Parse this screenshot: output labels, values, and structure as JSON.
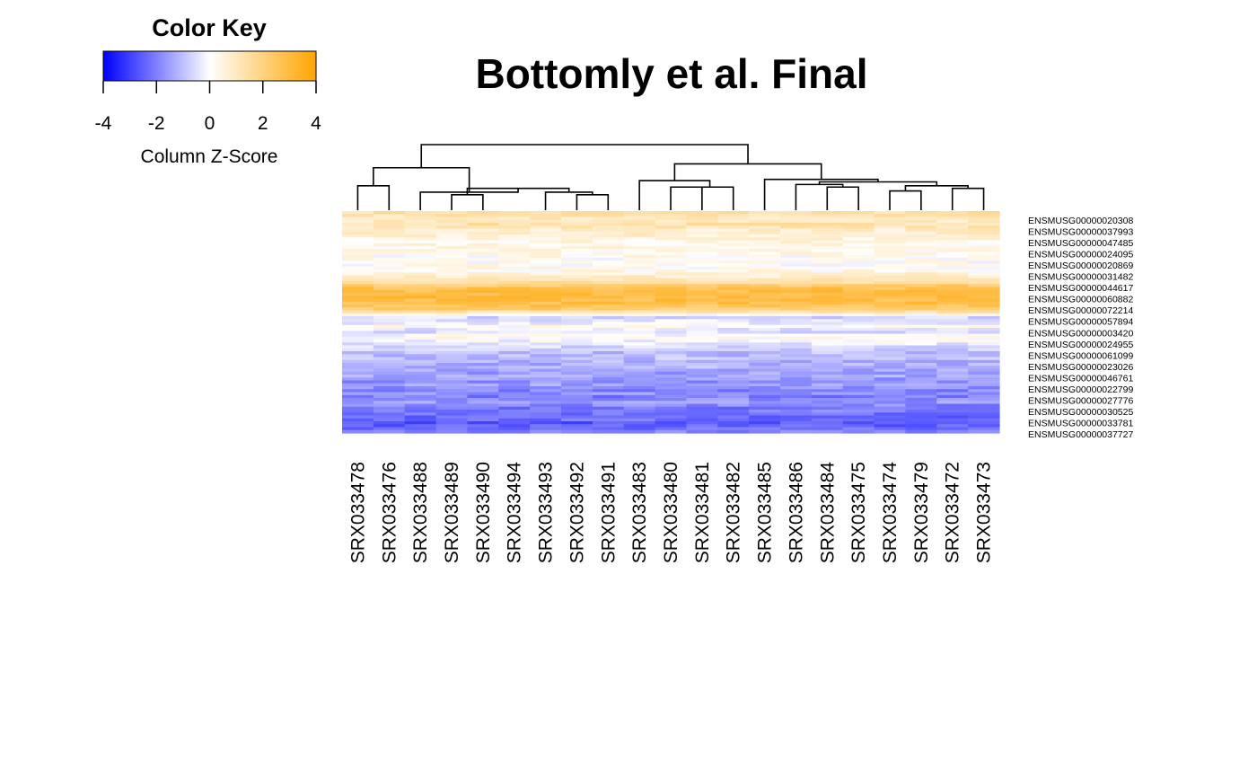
{
  "chart_data": {
    "type": "heatmap",
    "title": "Bottomly et al. Final",
    "color_key": {
      "title": "Color Key",
      "label": "Column Z-Score",
      "range": [
        -4,
        4
      ],
      "ticks": [
        "-4",
        "-2",
        "0",
        "2",
        "4"
      ],
      "low_color": "#0000ff",
      "mid_color": "#ffffff",
      "high_color": "#ffa500"
    },
    "columns": [
      "SRX033478",
      "SRX033476",
      "SRX033488",
      "SRX033489",
      "SRX033490",
      "SRX033494",
      "SRX033493",
      "SRX033492",
      "SRX033491",
      "SRX033483",
      "SRX033480",
      "SRX033481",
      "SRX033482",
      "SRX033485",
      "SRX033486",
      "SRX033484",
      "SRX033475",
      "SRX033474",
      "SRX033479",
      "SRX033472",
      "SRX033473"
    ],
    "row_labels": [
      "ENSMUSG00000020308",
      "ENSMUSG00000037993",
      "ENSMUSG00000047485",
      "ENSMUSG00000024095",
      "ENSMUSG00000020869",
      "ENSMUSG00000031482",
      "ENSMUSG00000044617",
      "ENSMUSG00000060882",
      "ENSMUSG00000072214",
      "ENSMUSG00000057894",
      "ENSMUSG00000003420",
      "ENSMUSG00000024955",
      "ENSMUSG00000061099",
      "ENSMUSG00000023026",
      "ENSMUSG00000046761",
      "ENSMUSG00000022799",
      "ENSMUSG00000027776",
      "ENSMUSG00000030525",
      "ENSMUSG00000033781",
      "ENSMUSG00000037727"
    ],
    "row_profile": [
      1.4,
      1.2,
      1.0,
      0.9,
      1.3,
      1.1,
      0.8,
      0.7,
      0.6,
      0.5,
      0.4,
      0.35,
      0.3,
      0.25,
      0.3,
      0.2,
      0.15,
      0.1,
      0.15,
      0.2,
      0.3,
      0.5,
      0.8,
      1.1,
      1.5,
      2.2,
      2.7,
      2.9,
      3.0,
      3.0,
      2.9,
      2.8,
      2.6,
      2.3,
      1.2,
      0.2,
      -0.6,
      -0.4,
      -0.2,
      0.1,
      -0.3,
      -0.5,
      0.0,
      0.2,
      -0.1,
      -0.3,
      -0.6,
      -0.8,
      -1.0,
      -1.1,
      -1.0,
      -1.2,
      -1.3,
      -1.2,
      -1.4,
      -1.5,
      -1.4,
      -1.6,
      -1.7,
      -1.5,
      -1.8,
      -1.9,
      -1.7,
      -2.0,
      -1.8,
      -1.6,
      -1.9,
      -2.1,
      -2.0,
      -2.2,
      -2.4,
      -2.3,
      -2.6,
      -2.5,
      -2.2,
      -2.0
    ],
    "column_dendrogram": {
      "merges": [
        [
          -1,
          -2
        ],
        [
          -8,
          -9
        ],
        [
          -4,
          -5
        ],
        [
          -7,
          2
        ],
        [
          3,
          4
        ],
        [
          -3,
          5
        ],
        [
          1,
          6
        ],
        [
          -11,
          -12
        ],
        [
          -13,
          8
        ],
        [
          -10,
          9
        ],
        [
          -16,
          -17
        ],
        [
          -18,
          -19
        ],
        [
          -20,
          -21
        ],
        [
          12,
          13
        ],
        [
          -15,
          11
        ],
        [
          15,
          14
        ],
        [
          -14,
          16
        ],
        [
          10,
          17
        ],
        [
          7,
          18
        ]
      ],
      "heights": [
        0.19,
        0.12,
        0.12,
        0.14,
        0.17,
        0.14,
        0.33,
        0.18,
        0.18,
        0.23,
        0.18,
        0.15,
        0.17,
        0.19,
        0.2,
        0.22,
        0.24,
        0.36,
        0.51
      ]
    }
  }
}
